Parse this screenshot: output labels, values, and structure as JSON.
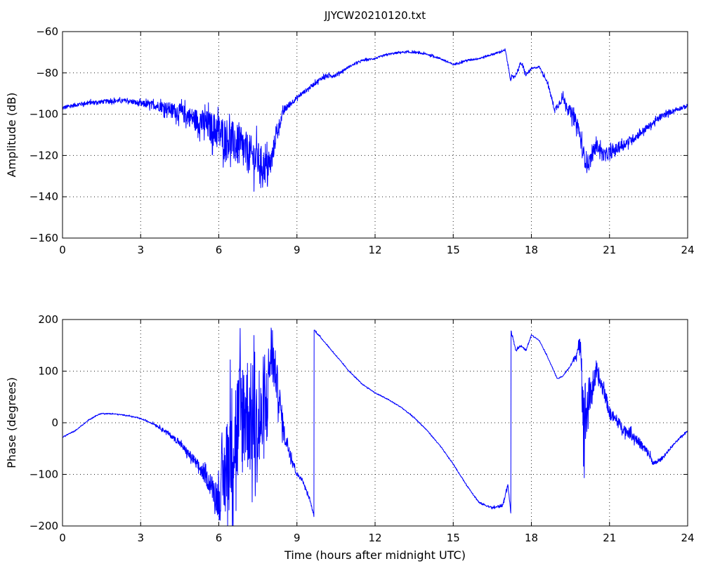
{
  "chart_data": [
    {
      "type": "line",
      "title": "JJYCW20210120.txt",
      "xlabel": "",
      "ylabel": "Amplitude (dB)",
      "xlim": [
        0,
        24
      ],
      "ylim": [
        -160,
        -60
      ],
      "xticks": [
        "0",
        "3",
        "6",
        "9",
        "12",
        "15",
        "18",
        "21",
        "24"
      ],
      "yticks": [
        "−60",
        "−80",
        "−100",
        "−120",
        "−140",
        "−160"
      ],
      "grid": true,
      "color": "#0000ff",
      "series": [
        {
          "x": [
            0,
            0.5,
            1.0,
            1.5,
            2.0,
            2.5,
            3.0,
            3.5,
            4.0,
            4.5,
            5.0,
            5.5,
            6.0,
            6.5,
            7.0,
            7.5,
            7.8,
            8.0,
            8.2,
            8.5,
            9.0,
            9.5,
            10.0,
            10.5,
            11.0,
            11.5,
            12.0,
            12.5,
            13.0,
            13.5,
            14.0,
            14.5,
            15.0,
            15.5,
            16.0,
            16.5,
            17.0,
            17.2,
            17.4,
            17.6,
            17.8,
            18.0,
            18.3,
            18.6,
            18.9,
            19.2,
            19.5,
            19.8,
            20.0,
            20.2,
            20.5,
            20.8,
            21.0,
            21.5,
            22.0,
            22.5,
            23.0,
            23.5,
            24.0
          ],
          "y": [
            -97,
            -95.5,
            -94.5,
            -94,
            -93.5,
            -93.5,
            -95,
            -95.5,
            -97,
            -99,
            -102,
            -105,
            -109,
            -113,
            -118,
            -122,
            -126,
            -124,
            -110,
            -98,
            -92,
            -87,
            -82,
            -81,
            -77,
            -74,
            -73,
            -71,
            -70,
            -70,
            -71,
            -73,
            -76,
            -74,
            -73,
            -71,
            -69,
            -83,
            -81,
            -75,
            -81,
            -78,
            -77,
            -84,
            -98,
            -92,
            -99,
            -106,
            -120,
            -124,
            -115,
            -120,
            -119,
            -115,
            -111,
            -106,
            -101,
            -98,
            -96
          ],
          "noise": [
            1,
            1,
            1,
            1,
            1,
            1,
            1.5,
            2,
            3,
            4,
            5,
            7,
            9,
            10,
            10,
            9,
            8,
            6,
            4,
            2,
            1,
            1,
            1,
            1,
            0.5,
            0.5,
            0.5,
            0.5,
            0.5,
            0.5,
            0.5,
            0.5,
            0.5,
            0.5,
            0.5,
            0.5,
            0.5,
            1,
            1,
            1,
            1,
            0.5,
            0.5,
            1,
            1.5,
            2,
            3,
            4,
            5,
            4,
            3,
            3,
            3,
            2.5,
            2,
            1.5,
            1.5,
            1,
            1
          ]
        }
      ]
    },
    {
      "type": "line",
      "title": "",
      "xlabel": "Time (hours after midnight UTC)",
      "ylabel": "Phase (degrees)",
      "xlim": [
        0,
        24
      ],
      "ylim": [
        -200,
        200
      ],
      "xticks": [
        "0",
        "3",
        "6",
        "9",
        "12",
        "15",
        "18",
        "21",
        "24"
      ],
      "yticks": [
        "200",
        "100",
        "0",
        "−100",
        "−200"
      ],
      "grid": true,
      "color": "#0000ff",
      "series": [
        {
          "x": [
            0,
            0.5,
            1.0,
            1.3,
            1.5,
            2.0,
            2.5,
            3.0,
            3.5,
            4.0,
            4.5,
            5.0,
            5.5,
            5.8,
            6.0,
            6.2,
            6.5,
            7.0,
            7.5,
            7.8,
            8.0,
            8.2,
            8.5,
            9.0,
            9.2,
            9.5,
            9.65,
            9.66,
            10.0,
            10.5,
            11.0,
            11.5,
            12.0,
            12.5,
            13.0,
            13.5,
            14.0,
            14.5,
            15.0,
            15.5,
            16.0,
            16.5,
            16.9,
            17.1,
            17.21,
            17.22,
            17.4,
            17.6,
            17.8,
            18.0,
            18.3,
            18.6,
            19.0,
            19.2,
            19.5,
            19.8,
            19.9,
            20.0,
            20.3,
            20.5,
            20.8,
            21.0,
            21.5,
            22.0,
            22.5,
            22.7,
            23.0,
            23.5,
            24.0
          ],
          "y": [
            -28,
            -15,
            5,
            14,
            18,
            17,
            14,
            8,
            -2,
            -18,
            -40,
            -70,
            -105,
            -130,
            -150,
            -110,
            -40,
            30,
            -20,
            20,
            140,
            90,
            -20,
            -100,
            -110,
            -150,
            -180,
            180,
            160,
            130,
            100,
            75,
            58,
            45,
            30,
            10,
            -15,
            -45,
            -80,
            -120,
            -155,
            -165,
            -160,
            -120,
            -175,
            178,
            140,
            150,
            140,
            170,
            160,
            130,
            85,
            90,
            110,
            140,
            160,
            0,
            60,
            95,
            60,
            20,
            -10,
            -30,
            -60,
            -80,
            -70,
            -40,
            -15
          ],
          "noise": [
            1,
            1,
            1,
            1,
            1,
            1,
            1,
            1,
            2,
            4,
            6,
            10,
            15,
            25,
            40,
            80,
            120,
            120,
            100,
            80,
            60,
            40,
            20,
            5,
            3,
            3,
            2,
            2,
            1,
            1,
            1,
            1,
            1,
            1,
            1,
            1,
            1,
            1,
            1,
            1,
            2,
            2,
            3,
            3,
            2,
            2,
            2,
            2,
            2,
            1,
            1,
            1,
            1,
            1,
            2,
            10,
            30,
            90,
            30,
            15,
            15,
            12,
            10,
            10,
            8,
            5,
            3,
            2,
            2
          ]
        }
      ]
    }
  ]
}
